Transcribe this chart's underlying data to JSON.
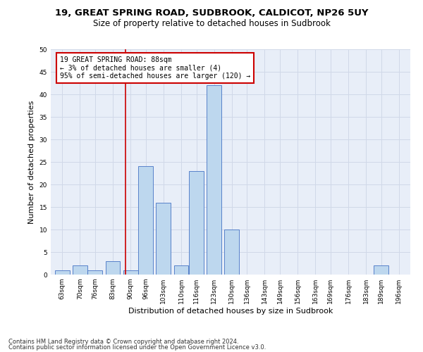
{
  "title1": "19, GREAT SPRING ROAD, SUDBROOK, CALDICOT, NP26 5UY",
  "title2": "Size of property relative to detached houses in Sudbrook",
  "xlabel": "Distribution of detached houses by size in Sudbrook",
  "ylabel": "Number of detached properties",
  "footnote1": "Contains HM Land Registry data © Crown copyright and database right 2024.",
  "footnote2": "Contains public sector information licensed under the Open Government Licence v3.0.",
  "annotation_line1": "19 GREAT SPRING ROAD: 88sqm",
  "annotation_line2": "← 3% of detached houses are smaller (4)",
  "annotation_line3": "95% of semi-detached houses are larger (120) →",
  "bins": [
    63,
    70,
    76,
    83,
    90,
    96,
    103,
    110,
    116,
    123,
    130,
    136,
    143,
    149,
    156,
    163,
    169,
    176,
    183,
    189,
    196
  ],
  "counts": [
    1,
    2,
    1,
    3,
    1,
    24,
    16,
    2,
    23,
    42,
    10,
    0,
    0,
    0,
    0,
    0,
    0,
    0,
    0,
    2,
    0
  ],
  "bar_color": "#bdd7ee",
  "bar_edge_color": "#4472c4",
  "vline_x": 88,
  "vline_color": "#cc0000",
  "annotation_box_color": "#cc0000",
  "ylim": [
    0,
    50
  ],
  "yticks": [
    0,
    5,
    10,
    15,
    20,
    25,
    30,
    35,
    40,
    45,
    50
  ],
  "grid_color": "#d0d8e8",
  "bg_color": "#e8eef8",
  "title1_fontsize": 9.5,
  "title2_fontsize": 8.5,
  "xlabel_fontsize": 8,
  "ylabel_fontsize": 8,
  "tick_fontsize": 6.5,
  "footnote_fontsize": 6,
  "annotation_fontsize": 7
}
